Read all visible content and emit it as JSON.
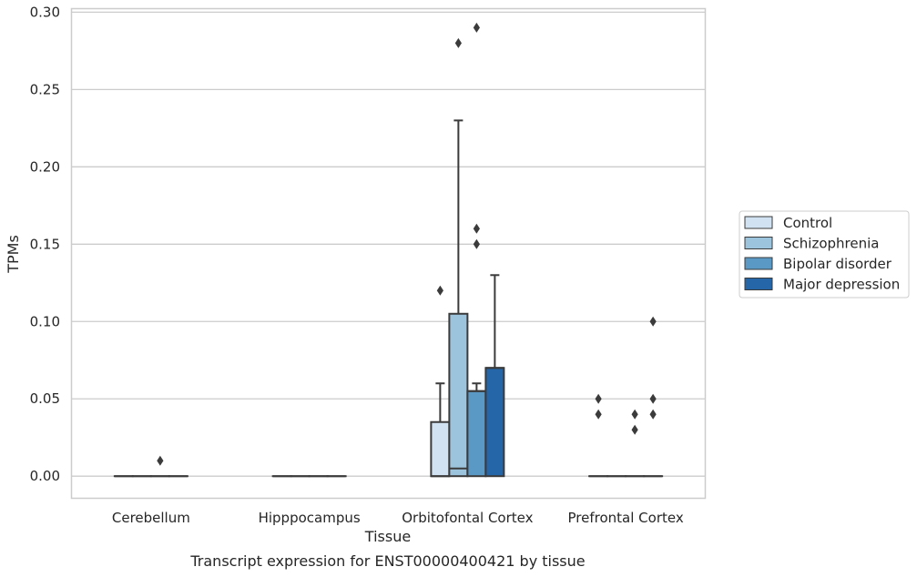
{
  "chart_data": {
    "type": "box",
    "title": "Transcript expression for ENST00000400421 by tissue",
    "xlabel": "Tissue",
    "ylabel": "TPMs",
    "ylim": [
      -0.014,
      0.302
    ],
    "yticks": [
      "0.00",
      "0.05",
      "0.10",
      "0.15",
      "0.20",
      "0.25",
      "0.30"
    ],
    "grid": "horizontal",
    "legend_position": "right",
    "categories": [
      "Cerebellum",
      "Hipppocampus",
      "Orbitofontal Cortex",
      "Prefrontal Cortex"
    ],
    "series": [
      {
        "name": "Control",
        "color": "#d1e2f2",
        "boxes": [
          {
            "q1": 0,
            "median": 0,
            "q3": 0,
            "whisker_low": 0,
            "whisker_high": 0,
            "outliers": []
          },
          {
            "q1": 0,
            "median": 0,
            "q3": 0,
            "whisker_low": 0,
            "whisker_high": 0,
            "outliers": []
          },
          {
            "q1": 0,
            "median": 0,
            "q3": 0.035,
            "whisker_low": 0,
            "whisker_high": 0.06,
            "outliers": [
              0.12
            ]
          },
          {
            "q1": 0,
            "median": 0,
            "q3": 0,
            "whisker_low": 0,
            "whisker_high": 0,
            "outliers": [
              0.04,
              0.05
            ]
          }
        ]
      },
      {
        "name": "Schizophrenia",
        "color": "#9cc4dd",
        "boxes": [
          {
            "q1": 0,
            "median": 0,
            "q3": 0,
            "whisker_low": 0,
            "whisker_high": 0,
            "outliers": []
          },
          {
            "q1": 0,
            "median": 0,
            "q3": 0,
            "whisker_low": 0,
            "whisker_high": 0,
            "outliers": []
          },
          {
            "q1": 0,
            "median": 0.005,
            "q3": 0.105,
            "whisker_low": 0,
            "whisker_high": 0.23,
            "outliers": [
              0.28
            ]
          },
          {
            "q1": 0,
            "median": 0,
            "q3": 0,
            "whisker_low": 0,
            "whisker_high": 0,
            "outliers": []
          }
        ]
      },
      {
        "name": "Bipolar disorder",
        "color": "#5a99c6",
        "boxes": [
          {
            "q1": 0,
            "median": 0,
            "q3": 0,
            "whisker_low": 0,
            "whisker_high": 0,
            "outliers": [
              0.01
            ]
          },
          {
            "q1": 0,
            "median": 0,
            "q3": 0,
            "whisker_low": 0,
            "whisker_high": 0,
            "outliers": []
          },
          {
            "q1": 0,
            "median": 0.055,
            "q3": 0.055,
            "whisker_low": 0,
            "whisker_high": 0.06,
            "outliers": [
              0.15,
              0.16,
              0.29
            ]
          },
          {
            "q1": 0,
            "median": 0,
            "q3": 0,
            "whisker_low": 0,
            "whisker_high": 0,
            "outliers": [
              0.03,
              0.04
            ]
          }
        ]
      },
      {
        "name": "Major depression",
        "color": "#2466a8",
        "boxes": [
          {
            "q1": 0,
            "median": 0,
            "q3": 0,
            "whisker_low": 0,
            "whisker_high": 0,
            "outliers": []
          },
          {
            "q1": 0,
            "median": 0,
            "q3": 0,
            "whisker_low": 0,
            "whisker_high": 0,
            "outliers": []
          },
          {
            "q1": 0,
            "median": 0.07,
            "q3": 0.07,
            "whisker_low": 0,
            "whisker_high": 0.13,
            "outliers": []
          },
          {
            "q1": 0,
            "median": 0,
            "q3": 0,
            "whisker_low": 0,
            "whisker_high": 0,
            "outliers": [
              0.04,
              0.05,
              0.1
            ]
          }
        ]
      }
    ]
  }
}
